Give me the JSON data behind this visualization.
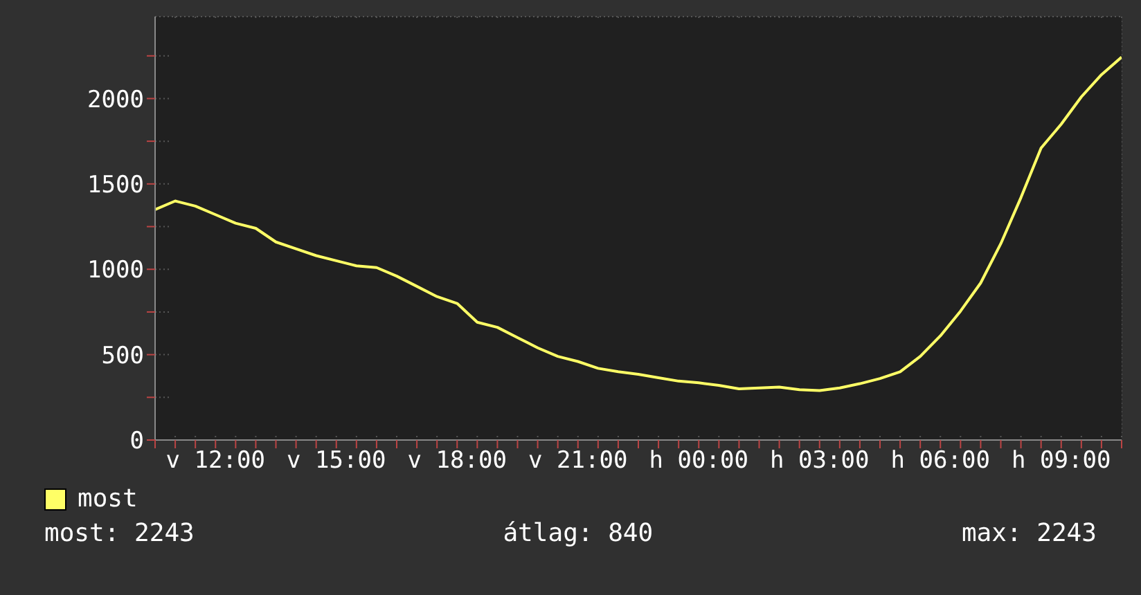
{
  "chart_data": {
    "type": "line",
    "categories": [
      null,
      null,
      null,
      "v 12:00",
      null,
      null,
      null,
      null,
      null,
      "v 15:00",
      null,
      null,
      null,
      null,
      null,
      "v 18:00",
      null,
      null,
      null,
      null,
      null,
      "v 21:00",
      null,
      null,
      null,
      null,
      null,
      "h 00:00",
      null,
      null,
      null,
      null,
      null,
      "h 03:00",
      null,
      null,
      null,
      null,
      null,
      "h 06:00",
      null,
      null,
      null,
      null,
      null,
      "h 09:00",
      null,
      null,
      null
    ],
    "series": [
      {
        "name": "most",
        "color": "#ffff66",
        "values": [
          1350,
          1400,
          1370,
          1320,
          1270,
          1240,
          1160,
          1120,
          1080,
          1050,
          1020,
          1010,
          960,
          900,
          840,
          800,
          690,
          660,
          600,
          540,
          490,
          460,
          420,
          400,
          385,
          365,
          345,
          335,
          320,
          300,
          305,
          310,
          295,
          290,
          305,
          330,
          360,
          400,
          490,
          610,
          755,
          920,
          1150,
          1420,
          1710,
          1850,
          2010,
          2140,
          2243
        ]
      }
    ],
    "ylim": [
      0,
      2480
    ],
    "yticks": [
      0,
      {
        "value": 250,
        "label": null
      },
      500,
      {
        "value": 750,
        "label": null
      },
      1000,
      {
        "value": 1250,
        "label": null
      },
      1500,
      {
        "value": 1750,
        "label": null
      },
      2000,
      {
        "value": 2250,
        "label": null
      }
    ],
    "grid": true,
    "legend": "bottom left",
    "marker": "none",
    "line_style": "solid",
    "annotations": [
      "most: 2243",
      "átlag: 840",
      "max: 2243"
    ]
  }
}
